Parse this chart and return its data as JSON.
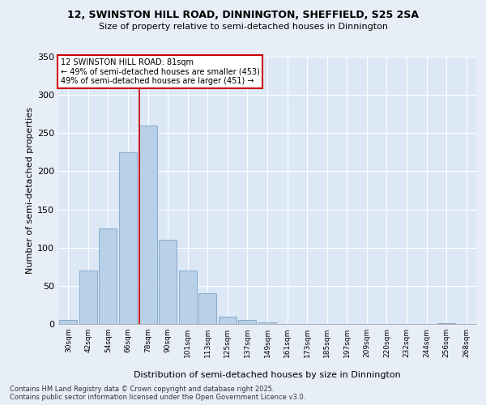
{
  "title1": "12, SWINSTON HILL ROAD, DINNINGTON, SHEFFIELD, S25 2SA",
  "title2": "Size of property relative to semi-detached houses in Dinnington",
  "xlabel": "Distribution of semi-detached houses by size in Dinnington",
  "ylabel": "Number of semi-detached properties",
  "categories": [
    "30sqm",
    "42sqm",
    "54sqm",
    "66sqm",
    "78sqm",
    "90sqm",
    "101sqm",
    "113sqm",
    "125sqm",
    "137sqm",
    "149sqm",
    "161sqm",
    "173sqm",
    "185sqm",
    "197sqm",
    "209sqm",
    "220sqm",
    "232sqm",
    "244sqm",
    "256sqm",
    "268sqm"
  ],
  "values": [
    5,
    70,
    125,
    225,
    260,
    110,
    70,
    40,
    10,
    5,
    2,
    0,
    0,
    0,
    0,
    0,
    0,
    0,
    0,
    1,
    0
  ],
  "bar_color": "#b8d0e8",
  "bar_edge_color": "#88aacc",
  "vline_index": 4,
  "annotation_title": "12 SWINSTON HILL ROAD: 81sqm",
  "annotation_line1": "← 49% of semi-detached houses are smaller (453)",
  "annotation_line2": "49% of semi-detached houses are larger (451) →",
  "annotation_box_color": "#ffffff",
  "annotation_box_edge": "#cc0000",
  "vline_color": "#cc0000",
  "ylim": [
    0,
    350
  ],
  "yticks": [
    0,
    50,
    100,
    150,
    200,
    250,
    300,
    350
  ],
  "footer1": "Contains HM Land Registry data © Crown copyright and database right 2025.",
  "footer2": "Contains public sector information licensed under the Open Government Licence v3.0.",
  "bg_color": "#e8eef8",
  "plot_bg_color": "#dce8f5"
}
